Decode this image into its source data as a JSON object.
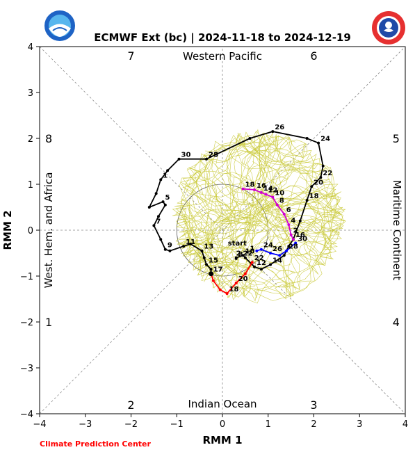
{
  "chart_data": {
    "type": "line",
    "title": "ECMWF Ext (bc) | 2024-11-18 to 2024-12-19",
    "xlabel": "RMM 1",
    "ylabel": "RMM 2",
    "xlim": [
      -4,
      4
    ],
    "ylim": [
      -4,
      4
    ],
    "xticks": [
      "−4",
      "−3",
      "−2",
      "−1",
      "0",
      "1",
      "2",
      "3",
      "4"
    ],
    "yticks": [
      "−4",
      "−3",
      "−2",
      "−1",
      "0",
      "1",
      "2",
      "3",
      "4"
    ],
    "region_labels": {
      "top": "Western Pacific",
      "bottom": "Indian Ocean",
      "left": "West. Hem. and Africa",
      "right": "Maritime Continent"
    },
    "phase_labels": [
      {
        "label": "7",
        "x": -2.0,
        "y": 3.8
      },
      {
        "label": "6",
        "x": 2.0,
        "y": 3.8
      },
      {
        "label": "8",
        "x": -3.8,
        "y": 2.0
      },
      {
        "label": "5",
        "x": 3.8,
        "y": 2.0
      },
      {
        "label": "1",
        "x": -3.8,
        "y": -2.0
      },
      {
        "label": "4",
        "x": 3.8,
        "y": -2.0
      },
      {
        "label": "2",
        "x": -2.0,
        "y": -3.8
      },
      {
        "label": "3",
        "x": 2.0,
        "y": -3.8
      }
    ],
    "unit_circle_radius": 1,
    "observed_series": [
      {
        "label": "30",
        "x": -0.95,
        "y": 1.55
      },
      {
        "label": "",
        "x": -1.2,
        "y": 1.3
      },
      {
        "label": "1",
        "x": -1.35,
        "y": 1.1
      },
      {
        "label": "",
        "x": -1.45,
        "y": 0.8
      },
      {
        "label": "",
        "x": -1.6,
        "y": 0.5
      },
      {
        "label": "5",
        "x": -1.3,
        "y": 0.62
      },
      {
        "label": "",
        "x": -1.25,
        "y": 0.55
      },
      {
        "label": "",
        "x": -1.4,
        "y": 0.3
      },
      {
        "label": "7",
        "x": -1.5,
        "y": 0.1
      },
      {
        "label": "",
        "x": -1.35,
        "y": -0.2
      },
      {
        "label": "9",
        "x": -1.25,
        "y": -0.42
      },
      {
        "label": "",
        "x": -1.15,
        "y": -0.45
      },
      {
        "label": "11",
        "x": -0.85,
        "y": -0.35
      },
      {
        "label": "",
        "x": -0.7,
        "y": -0.3
      },
      {
        "label": "13",
        "x": -0.45,
        "y": -0.45
      },
      {
        "label": "",
        "x": -0.4,
        "y": -0.6
      },
      {
        "label": "15",
        "x": -0.35,
        "y": -0.75
      },
      {
        "label": "",
        "x": -0.25,
        "y": -0.85
      },
      {
        "label": "17",
        "x": -0.25,
        "y": -0.95
      }
    ],
    "observed_tail": [
      {
        "label": "28",
        "x": -0.35,
        "y": 1.55
      },
      {
        "label": "",
        "x": 0.6,
        "y": 2.0
      },
      {
        "label": "26",
        "x": 1.1,
        "y": 2.15
      },
      {
        "label": "",
        "x": 1.85,
        "y": 2.0
      },
      {
        "label": "24",
        "x": 2.1,
        "y": 1.9
      },
      {
        "label": "",
        "x": 2.2,
        "y": 1.4
      },
      {
        "label": "22",
        "x": 2.15,
        "y": 1.15
      },
      {
        "label": "20",
        "x": 1.95,
        "y": 0.95
      },
      {
        "label": "18",
        "x": 1.85,
        "y": 0.65
      },
      {
        "label": "",
        "x": 1.7,
        "y": 0.2
      },
      {
        "label": "16",
        "x": 1.55,
        "y": -0.2
      },
      {
        "label": "",
        "x": 1.45,
        "y": -0.35
      },
      {
        "label": "",
        "x": 1.35,
        "y": -0.55
      },
      {
        "label": "14",
        "x": 1.05,
        "y": -0.75
      },
      {
        "label": "",
        "x": 0.85,
        "y": -0.85
      },
      {
        "label": "12",
        "x": 0.7,
        "y": -0.8
      },
      {
        "label": "",
        "x": 0.5,
        "y": -0.6
      },
      {
        "label": "10",
        "x": 0.45,
        "y": -0.55
      },
      {
        "label": "",
        "x": 0.3,
        "y": -0.6
      },
      {
        "label": "8",
        "x": 0.3,
        "y": -0.62
      }
    ],
    "magenta_series": [
      {
        "label": "18",
        "x": 0.45,
        "y": 0.9
      },
      {
        "label": "16",
        "x": 0.7,
        "y": 0.88
      },
      {
        "label": "14",
        "x": 0.85,
        "y": 0.82
      },
      {
        "label": "12",
        "x": 0.95,
        "y": 0.78
      },
      {
        "label": "10",
        "x": 1.1,
        "y": 0.72
      },
      {
        "label": "8",
        "x": 1.2,
        "y": 0.55
      },
      {
        "label": "6",
        "x": 1.35,
        "y": 0.35
      },
      {
        "label": "4",
        "x": 1.45,
        "y": 0.12
      },
      {
        "label": "2",
        "x": 1.5,
        "y": -0.1
      },
      {
        "label": "",
        "x": 1.55,
        "y": -0.2
      }
    ],
    "blue_series": [
      {
        "label": "30",
        "x": 1.6,
        "y": -0.28
      },
      {
        "label": "28",
        "x": 1.4,
        "y": -0.45
      },
      {
        "label": "",
        "x": 1.25,
        "y": -0.55
      },
      {
        "label": "26",
        "x": 1.05,
        "y": -0.5
      },
      {
        "label": "24",
        "x": 0.85,
        "y": -0.42
      },
      {
        "label": "",
        "x": 0.75,
        "y": -0.45
      }
    ],
    "red_series": [
      {
        "label": "22",
        "x": 0.65,
        "y": -0.7
      },
      {
        "label": "",
        "x": 0.5,
        "y": -0.95
      },
      {
        "label": "20",
        "x": 0.3,
        "y": -1.15
      },
      {
        "label": "18",
        "x": 0.1,
        "y": -1.38
      },
      {
        "label": "",
        "x": -0.05,
        "y": -1.3
      },
      {
        "label": "",
        "x": -0.2,
        "y": -1.1
      },
      {
        "label": "",
        "x": -0.25,
        "y": -0.95
      }
    ],
    "start_label": {
      "label": "start",
      "x": 0.3,
      "y": -0.3
    },
    "extra_labels": [
      {
        "label": "2",
        "x": 0.3,
        "y": -0.55
      },
      {
        "label": "22",
        "x": 0.45,
        "y": -0.55
      },
      {
        "label": "1",
        "x": 0.6,
        "y": -0.45
      }
    ]
  },
  "credit": "Climate Prediction Center",
  "colors": {
    "ensemble": "#c8c832",
    "observed": "#000000",
    "magenta": "#d000d0",
    "blue": "#0000ff",
    "red": "#ff0000"
  }
}
